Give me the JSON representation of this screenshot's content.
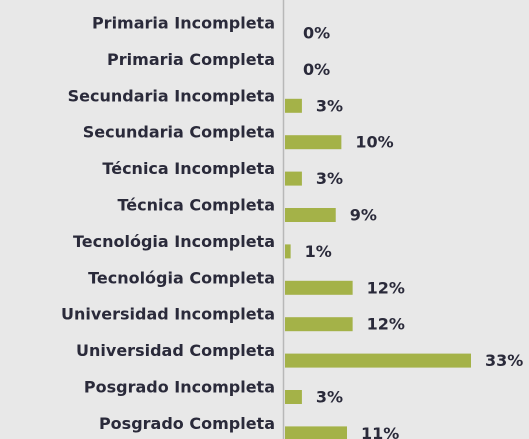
{
  "chart_data": {
    "type": "bar",
    "orientation": "horizontal",
    "color": "#a4b248",
    "categories": [
      "Primaria Incompleta",
      "Primaria Completa",
      "Secundaria Incompleta",
      "Secundaria Completa",
      "Técnica Incompleta",
      "Técnica Completa",
      "Tecnológia Incompleta",
      "Tecnológia Completa",
      "Universidad Incompleta",
      "Universidad Completa",
      "Posgrado Incompleta",
      "Posgrado Completa"
    ],
    "values": [
      0,
      0,
      3,
      10,
      3,
      9,
      1,
      12,
      12,
      33,
      3,
      11
    ],
    "value_labels": [
      "0%",
      "0%",
      "3%",
      "10%",
      "3%",
      "9%",
      "1%",
      "12%",
      "12%",
      "33%",
      "3%",
      "11%"
    ]
  }
}
